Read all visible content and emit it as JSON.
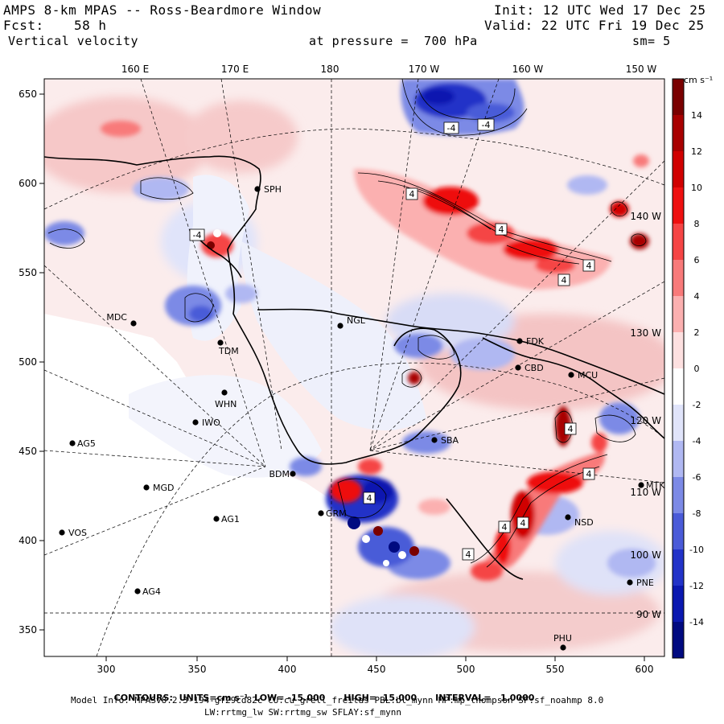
{
  "header": {
    "title": "AMPS 8-km MPAS -- Ross-Beardmore Window",
    "init": "Init: 12 UTC Wed 17 Dec 25",
    "fcst_label": "Fcst:",
    "fcst_value": "58 h",
    "valid": "Valid: 22 UTC Fri 19 Dec 25",
    "field": "Vertical velocity",
    "pressure": "at pressure =  700 hPa",
    "smooth": "sm= 5"
  },
  "lon_labels": [
    "160 E",
    "170 E",
    "180",
    "170 W",
    "160 W",
    "150 W"
  ],
  "x_ticks": [
    "300",
    "350",
    "400",
    "450",
    "500",
    "550",
    "600"
  ],
  "y_ticks": [
    "650",
    "600",
    "550",
    "500",
    "450",
    "400",
    "350"
  ],
  "right_lon_labels": [
    "140 W",
    "130 W",
    "120 W",
    "110 W",
    "100 W",
    "90 W"
  ],
  "colorbar": {
    "unit": "cm s⁻¹",
    "levels": [
      "14",
      "12",
      "10",
      "8",
      "6",
      "4",
      "2",
      "0",
      "-2",
      "-4",
      "-6",
      "-8",
      "-10",
      "-12",
      "-14"
    ],
    "colors": [
      "#7a0000",
      "#a80000",
      "#d00000",
      "#ee1010",
      "#f54545",
      "#f87a7a",
      "#fbb0b0",
      "#fde0e0",
      "#ffffff",
      "#e0e4fa",
      "#b0b8f2",
      "#7c8ae6",
      "#4a5bd8",
      "#2233c8",
      "#0a18b0",
      "#000a80"
    ]
  },
  "stations": [
    {
      "code": "SPH"
    },
    {
      "code": "MDC"
    },
    {
      "code": "NGL"
    },
    {
      "code": "FDK"
    },
    {
      "code": "TDM"
    },
    {
      "code": "CBD"
    },
    {
      "code": "MCU"
    },
    {
      "code": "WHN"
    },
    {
      "code": "IWO"
    },
    {
      "code": "AG5"
    },
    {
      "code": "SBA"
    },
    {
      "code": "BDM"
    },
    {
      "code": "MGD"
    },
    {
      "code": "GRM"
    },
    {
      "code": "AG1"
    },
    {
      "code": "VOS"
    },
    {
      "code": "NSD"
    },
    {
      "code": "AG4"
    },
    {
      "code": "PNE"
    },
    {
      "code": "MTK"
    },
    {
      "code": "PHU"
    }
  ],
  "contour_labels": [
    "-4",
    "-4",
    "4",
    "4",
    "4",
    "4",
    "4",
    "4",
    "4",
    "4",
    "4",
    "4",
    "-4"
  ],
  "footer": {
    "contours_key": "CONTOURS:",
    "units_key": "UNITS=",
    "units_value": "cm s⁻¹",
    "low_key": "LOW=",
    "low_value": "-15.000",
    "high_key": "HIGH=",
    "high_value": "15.000",
    "interval_key": "INTERVAL=",
    "interval_value": "1.0000",
    "model_info": "Model Info: MPASv8.2.3-194-gf29cd82c CU:cu_grell_freitas PBL:bl_mynn MP:mp_thompson SF:sf_noahmp 8.0",
    "model_info2": "LW:rrtmg_lw SW:rrtmg_sw SFLAY:sf_mynn"
  }
}
